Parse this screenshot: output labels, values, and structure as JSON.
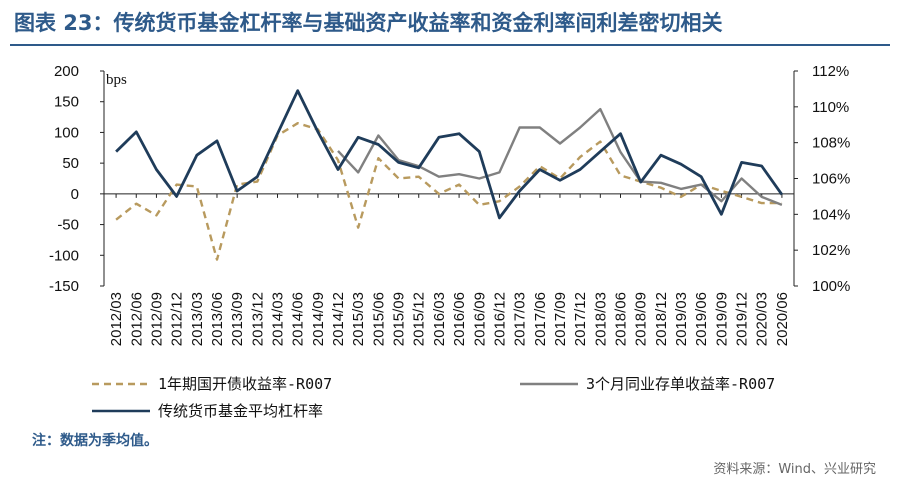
{
  "header": {
    "title": "图表 23：传统货币基金杠杆率与基础资产收益率和资金利率间利差密切相关"
  },
  "footer": {
    "note": "注：数据为季均值。",
    "source": "资料来源：Wind、兴业研究"
  },
  "chart_data": {
    "type": "line",
    "y_left_unit": "bps",
    "y_left_range": [
      -150,
      200
    ],
    "y_left_ticks": [
      "200",
      "150",
      "100",
      "50",
      "0",
      "-50",
      "-100",
      "-150"
    ],
    "y_right_range": [
      100,
      112
    ],
    "y_right_ticks": [
      "112%",
      "110%",
      "108%",
      "106%",
      "104%",
      "102%",
      "100%"
    ],
    "categories": [
      "2012/03",
      "2012/06",
      "2012/09",
      "2012/12",
      "2013/03",
      "2013/06",
      "2013/09",
      "2013/12",
      "2014/03",
      "2014/06",
      "2014/09",
      "2014/12",
      "2015/03",
      "2015/06",
      "2015/09",
      "2015/12",
      "2016/03",
      "2016/06",
      "2016/09",
      "2016/12",
      "2017/03",
      "2017/06",
      "2017/09",
      "2017/12",
      "2018/03",
      "2018/06",
      "2018/09",
      "2018/12",
      "2019/03",
      "2019/06",
      "2019/09",
      "2019/12",
      "2020/03",
      "2020/06"
    ],
    "series": [
      {
        "name": "1年期国开债收益率-R007",
        "axis": "left",
        "color": "#b89a5e",
        "style": "dashed",
        "values": [
          -42,
          -16,
          -35,
          15,
          12,
          -107,
          15,
          20,
          95,
          115,
          105,
          55,
          -55,
          58,
          25,
          28,
          0,
          15,
          -18,
          -12,
          12,
          45,
          25,
          60,
          85,
          30,
          20,
          10,
          -5,
          15,
          5,
          -5,
          -15,
          -15
        ]
      },
      {
        "name": "3个月同业存单收益率-R007",
        "axis": "left",
        "color": "#808080",
        "style": "solid",
        "values": [
          null,
          null,
          null,
          null,
          null,
          null,
          null,
          null,
          null,
          null,
          null,
          70,
          35,
          95,
          55,
          45,
          28,
          32,
          25,
          35,
          108,
          108,
          82,
          108,
          138,
          68,
          20,
          18,
          8,
          15,
          -12,
          25,
          -5,
          -18
        ]
      },
      {
        "name": "传统货币基金平均杠杆率",
        "axis": "right",
        "color": "#1f3c5a",
        "style": "solid",
        "values": [
          107.5,
          108.6,
          106.5,
          105.0,
          107.3,
          108.1,
          105.3,
          106.1,
          108.5,
          110.9,
          108.6,
          106.5,
          108.3,
          107.9,
          106.9,
          106.6,
          108.3,
          108.5,
          107.5,
          103.8,
          105.3,
          106.5,
          105.9,
          106.5,
          107.5,
          108.5,
          105.8,
          107.3,
          106.8,
          106.1,
          104.0,
          106.9,
          106.7,
          105.1
        ]
      }
    ],
    "legend_position": "bottom",
    "grid": false
  }
}
